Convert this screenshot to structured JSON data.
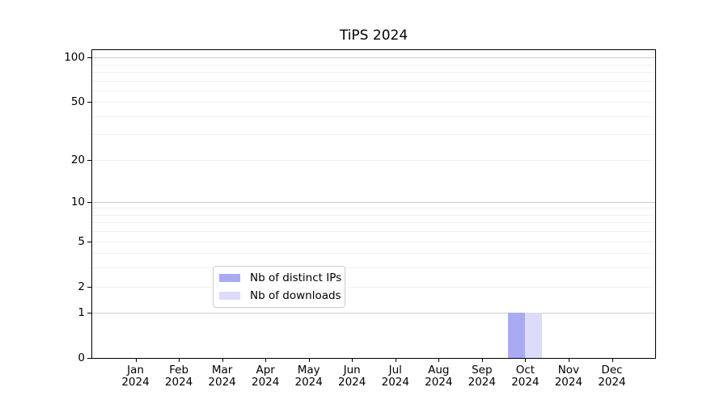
{
  "title": "TiPS 2024",
  "legend": {
    "items": [
      {
        "label": "Nb of distinct IPs",
        "color": "#aaaaf2"
      },
      {
        "label": "Nb of downloads",
        "color": "#dcdcf8"
      }
    ]
  },
  "chart_data": {
    "type": "bar",
    "title": "TiPS 2024",
    "xlabel": "",
    "ylabel": "",
    "yscale": "log1p",
    "ylim": [
      0,
      112
    ],
    "grid": true,
    "legend_position": "bottom-center",
    "categories": [
      {
        "month": "Jan",
        "year": "2024"
      },
      {
        "month": "Feb",
        "year": "2024"
      },
      {
        "month": "Mar",
        "year": "2024"
      },
      {
        "month": "Apr",
        "year": "2024"
      },
      {
        "month": "May",
        "year": "2024"
      },
      {
        "month": "Jun",
        "year": "2024"
      },
      {
        "month": "Jul",
        "year": "2024"
      },
      {
        "month": "Aug",
        "year": "2024"
      },
      {
        "month": "Sep",
        "year": "2024"
      },
      {
        "month": "Oct",
        "year": "2024"
      },
      {
        "month": "Nov",
        "year": "2024"
      },
      {
        "month": "Dec",
        "year": "2024"
      }
    ],
    "series": [
      {
        "name": "Nb of distinct IPs",
        "color": "#aaaaf2",
        "values": [
          0,
          0,
          0,
          0,
          0,
          0,
          0,
          0,
          0,
          1,
          0,
          0
        ]
      },
      {
        "name": "Nb of downloads",
        "color": "#dcdcf8",
        "values": [
          0,
          0,
          0,
          0,
          0,
          0,
          0,
          0,
          0,
          1,
          0,
          0
        ]
      }
    ],
    "y_ticks": [
      0,
      1,
      2,
      5,
      10,
      20,
      50,
      100
    ],
    "y_tick_labels": [
      "0",
      "1",
      "2",
      "5",
      "10",
      "20",
      "50",
      "100"
    ],
    "y_major_gridlines": [
      1,
      10,
      100
    ],
    "y_minor_gridlines": [
      2,
      3,
      4,
      5,
      6,
      7,
      8,
      9,
      20,
      30,
      40,
      50,
      60,
      70,
      80,
      90
    ]
  }
}
